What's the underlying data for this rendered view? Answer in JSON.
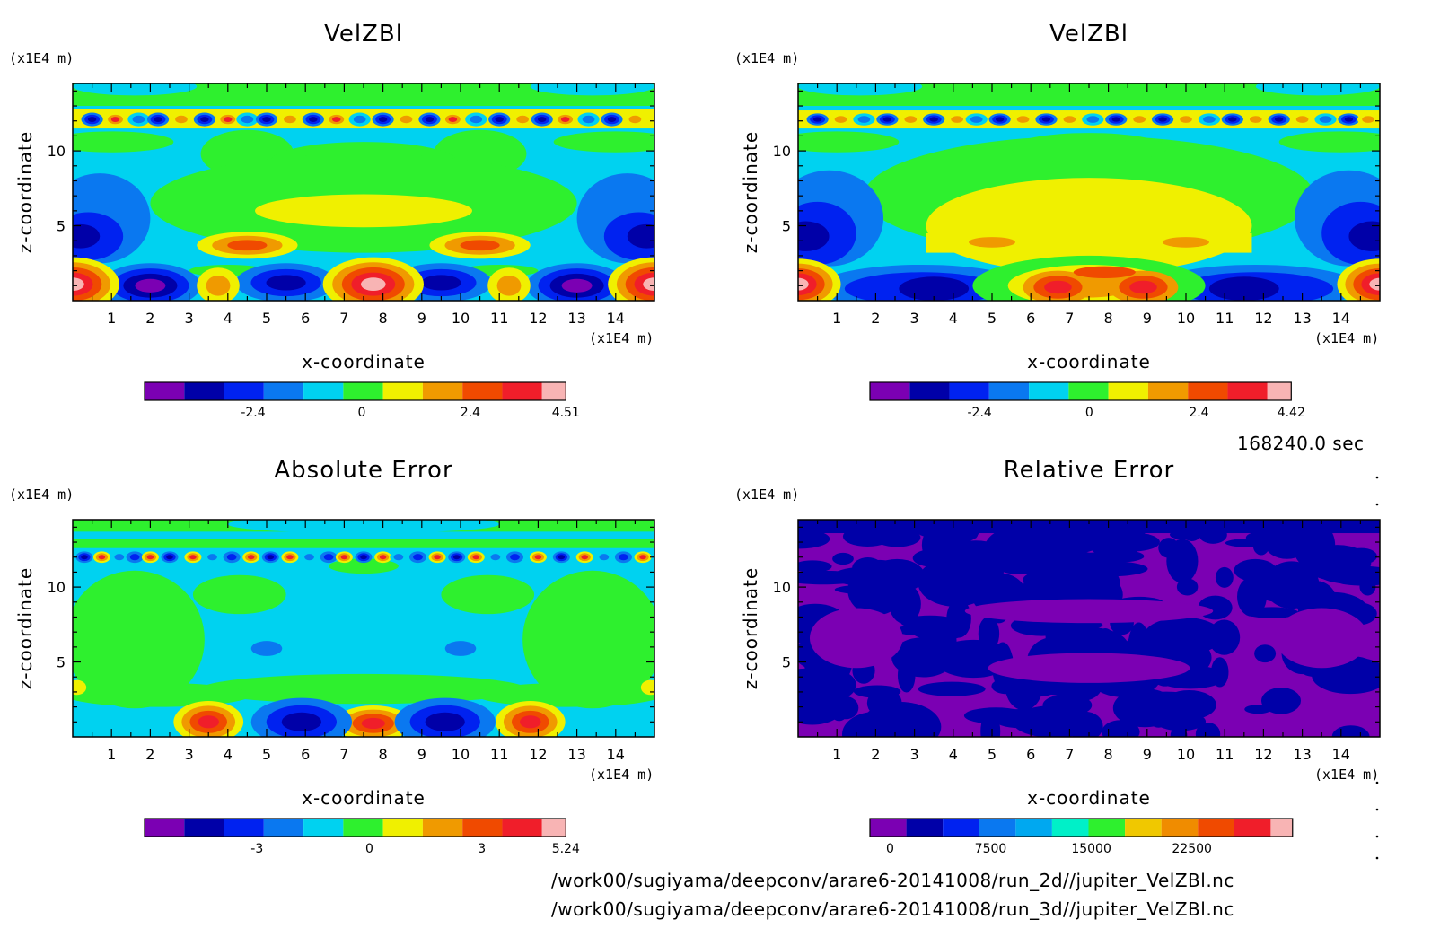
{
  "timestamp": "168240.0 sec",
  "files": [
    "/work00/sugiyama/deepconv/arare6-20141008/run_2d//jupiter_VelZBl.nc",
    "/work00/sugiyama/deepconv/arare6-20141008/run_3d//jupiter_VelZBl.nc"
  ],
  "chart_data": [
    {
      "type": "heatmap",
      "title": "VelZBl",
      "xlabel": "x-coordinate",
      "ylabel": "z-coordinate",
      "xunit": "(x1E4 m)",
      "yunit": "(x1E4 m)",
      "xlim": [
        0,
        15
      ],
      "ylim": [
        0,
        14.5
      ],
      "xticks": [
        1,
        2,
        3,
        4,
        5,
        6,
        7,
        8,
        9,
        10,
        11,
        12,
        13,
        14
      ],
      "yticks": [
        5,
        10
      ],
      "colorbar": {
        "colors": [
          "#7b00b3",
          "#0000a8",
          "#0022f0",
          "#0a78f0",
          "#00d2f0",
          "#2ef02e",
          "#f0f000",
          "#f09a00",
          "#f04a00",
          "#f01e2a",
          "#f8b4b4"
        ],
        "ticks": [
          "-2.4",
          "0",
          "2.4",
          "4.51"
        ],
        "min": -4.8,
        "max": 4.51
      },
      "dominant_field": "light blue background; green bands mid-domain; yellow band near z=6; orange cells at z=3.5 near x=4.5 and x=10.5; red/orange cells at surface near x=0, 7.8, 15; blue cells near surface; alternating red/blue chain near z=12"
    },
    {
      "type": "heatmap",
      "title": "VelZBl",
      "xlabel": "x-coordinate",
      "ylabel": "z-coordinate",
      "xunit": "(x1E4 m)",
      "yunit": "(x1E4 m)",
      "xlim": [
        0,
        15
      ],
      "ylim": [
        0,
        14.5
      ],
      "xticks": [
        1,
        2,
        3,
        4,
        5,
        6,
        7,
        8,
        9,
        10,
        11,
        12,
        13,
        14
      ],
      "yticks": [
        5,
        10
      ],
      "colorbar": {
        "colors": [
          "#7b00b3",
          "#0000a8",
          "#0022f0",
          "#0a78f0",
          "#00d2f0",
          "#2ef02e",
          "#f0f000",
          "#f09a00",
          "#f04a00",
          "#f01e2a",
          "#f8b4b4"
        ],
        "ticks": [
          "-2.4",
          "0",
          "2.4",
          "4.42"
        ],
        "min": -4.8,
        "max": 4.42
      },
      "dominant_field": "light blue background; green mid-domain; broad yellow dome z=2-7; orange/red arch cells near surface x=6-9; red cells at surface near x=0 and x=15"
    },
    {
      "type": "heatmap",
      "title": "Absolute Error",
      "xlabel": "x-coordinate",
      "ylabel": "z-coordinate",
      "xunit": "(x1E4 m)",
      "yunit": "(x1E4 m)",
      "xlim": [
        0,
        15
      ],
      "ylim": [
        0,
        14.5
      ],
      "xticks": [
        1,
        2,
        3,
        4,
        5,
        6,
        7,
        8,
        9,
        10,
        11,
        12,
        13,
        14
      ],
      "yticks": [
        5,
        10
      ],
      "colorbar": {
        "colors": [
          "#7b00b3",
          "#0000a8",
          "#0022f0",
          "#0a78f0",
          "#00d2f0",
          "#2ef02e",
          "#f0f000",
          "#f09a00",
          "#f04a00",
          "#f01e2a",
          "#f8b4b4"
        ],
        "ticks": [
          "-3",
          "0",
          "3",
          "5.24"
        ],
        "min": -6,
        "max": 5.24
      },
      "dominant_field": "light blue background with green patches; red/orange surface cells near x=3.5, 7.7, 11.8; blue surface cells near x=6, 9.5; red/blue chain near z=12"
    },
    {
      "type": "heatmap",
      "title": "Relative Error",
      "xlabel": "x-coordinate",
      "ylabel": "z-coordinate",
      "xunit": "(x1E4 m)",
      "yunit": "(x1E4 m)",
      "xlim": [
        0,
        15
      ],
      "ylim": [
        0,
        14.5
      ],
      "xticks": [
        1,
        2,
        3,
        4,
        5,
        6,
        7,
        8,
        9,
        10,
        11,
        12,
        13,
        14
      ],
      "yticks": [
        5,
        10
      ],
      "colorbar": {
        "colors": [
          "#7b00b3",
          "#0000a8",
          "#0022f0",
          "#0a78f0",
          "#00a8f0",
          "#00f0c8",
          "#2ef02e",
          "#f0c800",
          "#f08c00",
          "#f04a00",
          "#f01e2a",
          "#f8b4b4"
        ],
        "ticks": [
          "0",
          "7500",
          "15000",
          "22500"
        ],
        "min": -1500,
        "max": 30000
      },
      "dominant_field": "purple and dark blue patches everywhere; near-uniform low values"
    }
  ]
}
